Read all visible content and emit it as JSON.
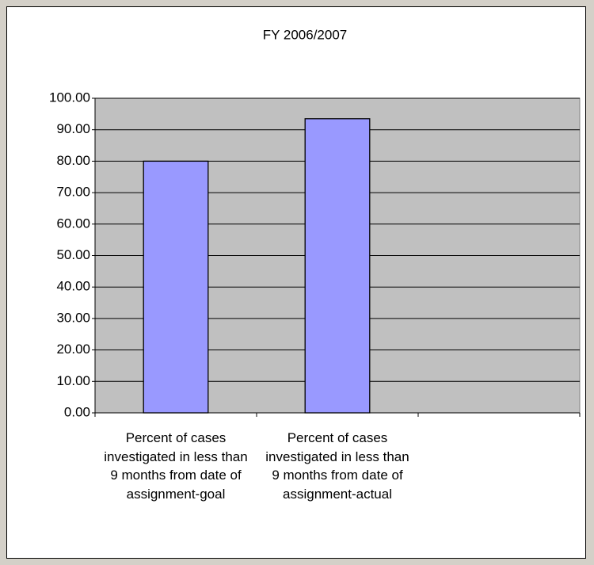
{
  "chart_data": {
    "type": "bar",
    "title": "FY 2006/2007",
    "categories": [
      "Percent of cases investigated in less than 9 months from date of assignment-goal",
      "Percent of cases investigated in less than 9 months from date of assignment-actual",
      null
    ],
    "values": [
      80,
      93.5,
      null
    ],
    "color": "#9999ff",
    "plot_background": "#c0c0c0",
    "ylim": [
      0,
      100
    ],
    "yticks": [
      {
        "value": 0,
        "label": "0.00"
      },
      {
        "value": 10,
        "label": "10.00"
      },
      {
        "value": 20,
        "label": "20.00"
      },
      {
        "value": 30,
        "label": "30.00"
      },
      {
        "value": 40,
        "label": "40.00"
      },
      {
        "value": 50,
        "label": "50.00"
      },
      {
        "value": 60,
        "label": "60.00"
      },
      {
        "value": 70,
        "label": "70.00"
      },
      {
        "value": 80,
        "label": "80.00"
      },
      {
        "value": 90,
        "label": "90.00"
      },
      {
        "value": 100,
        "label": "100.00"
      }
    ],
    "grid": true
  }
}
